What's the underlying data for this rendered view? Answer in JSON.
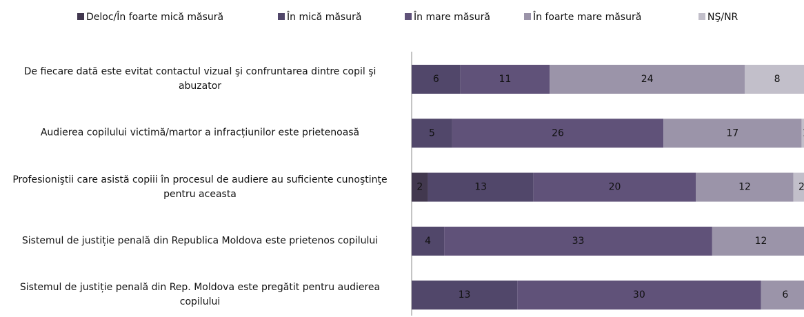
{
  "chart_data": {
    "type": "stacked_bar_horizontal",
    "categories": [
      "De fiecare dată este evitat contactul vizual şi confruntarea dintre copil şi abuzator",
      "Audierea copilului victimă/martor a infracțiunilor este prietenoasă",
      "Profesioniştii care asistă copiii în procesul de audiere au suficiente cunoştinţe pentru aceasta",
      "Sistemul de justiție penală din Republica Moldova este prietenos copilului",
      "Sistemul de justiție penală din Rep. Moldova este pregătit pentru audierea copilului"
    ],
    "series": [
      {
        "name": "Deloc/În foarte mică măsură",
        "color": "#42384f",
        "values": [
          null,
          null,
          2,
          null,
          null
        ]
      },
      {
        "name": "În mică măsură",
        "color": "#51476a",
        "values": [
          6,
          5,
          13,
          4,
          13
        ]
      },
      {
        "name": "În mare măsură",
        "color": "#605279",
        "values": [
          11,
          26,
          20,
          33,
          30
        ]
      },
      {
        "name": "În foarte mare măsură",
        "color": "#9b94a9",
        "values": [
          24,
          17,
          12,
          12,
          6
        ]
      },
      {
        "name": "NŞ/NR",
        "color": "#c2bfca",
        "values": [
          8,
          1,
          2,
          null,
          null
        ]
      }
    ],
    "legend": "top"
  }
}
